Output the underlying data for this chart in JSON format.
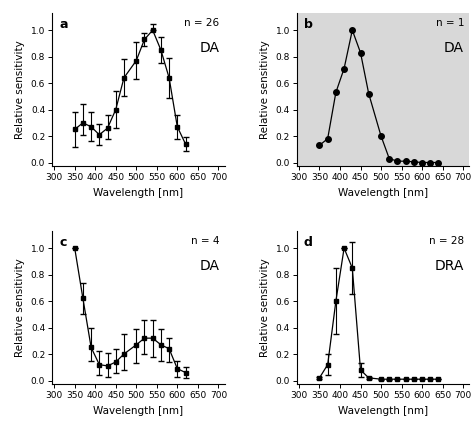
{
  "panel_a": {
    "label": "a",
    "n_label": "n = 26",
    "type_label": "DA",
    "x": [
      350,
      370,
      390,
      410,
      430,
      450,
      470,
      500,
      520,
      540,
      560,
      580,
      600,
      620
    ],
    "y": [
      0.25,
      0.3,
      0.27,
      0.21,
      0.26,
      0.4,
      0.64,
      0.77,
      0.93,
      1.0,
      0.85,
      0.64,
      0.27,
      0.14
    ],
    "yerr_lo": [
      0.13,
      0.09,
      0.11,
      0.08,
      0.08,
      0.14,
      0.14,
      0.14,
      0.05,
      0.0,
      0.1,
      0.15,
      0.09,
      0.05
    ],
    "yerr_hi": [
      0.13,
      0.14,
      0.11,
      0.08,
      0.1,
      0.14,
      0.14,
      0.14,
      0.05,
      0.05,
      0.1,
      0.15,
      0.09,
      0.05
    ],
    "has_errors": true,
    "marker": "s",
    "markersize": 3.5
  },
  "panel_b": {
    "label": "b",
    "n_label": "n = 1",
    "type_label": "DA",
    "x": [
      350,
      370,
      390,
      410,
      430,
      450,
      470,
      500,
      520,
      540,
      560,
      580,
      600,
      620,
      640
    ],
    "y": [
      0.13,
      0.18,
      0.53,
      0.71,
      1.0,
      0.83,
      0.52,
      0.2,
      0.03,
      0.01,
      0.01,
      0.005,
      0.0,
      0.0,
      0.0
    ],
    "yerr_lo": [],
    "yerr_hi": [],
    "has_errors": false,
    "marker": "o",
    "markersize": 4
  },
  "panel_c": {
    "label": "c",
    "n_label": "n = 4",
    "type_label": "DA",
    "x": [
      350,
      370,
      390,
      410,
      430,
      450,
      470,
      500,
      520,
      540,
      560,
      580,
      600,
      620
    ],
    "y": [
      1.0,
      0.62,
      0.25,
      0.12,
      0.11,
      0.14,
      0.2,
      0.27,
      0.32,
      0.32,
      0.27,
      0.24,
      0.09,
      0.06
    ],
    "yerr_lo": [
      0.0,
      0.12,
      0.1,
      0.08,
      0.08,
      0.08,
      0.12,
      0.14,
      0.12,
      0.14,
      0.12,
      0.1,
      0.06,
      0.04
    ],
    "yerr_hi": [
      0.0,
      0.12,
      0.15,
      0.1,
      0.1,
      0.1,
      0.15,
      0.12,
      0.14,
      0.14,
      0.12,
      0.08,
      0.06,
      0.04
    ],
    "has_errors": true,
    "marker": "s",
    "markersize": 3.5
  },
  "panel_d": {
    "label": "d",
    "n_label": "n = 28",
    "type_label": "DRA",
    "x": [
      350,
      370,
      390,
      410,
      430,
      450,
      470,
      500,
      520,
      540,
      560,
      580,
      600,
      620,
      640
    ],
    "y": [
      0.02,
      0.12,
      0.6,
      1.0,
      0.85,
      0.08,
      0.02,
      0.01,
      0.01,
      0.01,
      0.01,
      0.01,
      0.01,
      0.01,
      0.01
    ],
    "yerr_lo": [
      0.01,
      0.08,
      0.25,
      0.0,
      0.2,
      0.05,
      0.01,
      0.005,
      0.005,
      0.0,
      0.0,
      0.0,
      0.0,
      0.0,
      0.0
    ],
    "yerr_hi": [
      0.01,
      0.08,
      0.25,
      0.0,
      0.2,
      0.05,
      0.01,
      0.005,
      0.005,
      0.0,
      0.0,
      0.0,
      0.0,
      0.0,
      0.0
    ],
    "has_errors": true,
    "marker": "s",
    "markersize": 3.5
  },
  "xlim": [
    295,
    715
  ],
  "ylim": [
    -0.03,
    1.13
  ],
  "yticks": [
    0.0,
    0.2,
    0.4,
    0.6,
    0.8,
    1.0
  ],
  "xticks": [
    300,
    350,
    400,
    450,
    500,
    550,
    600,
    650,
    700
  ],
  "xticklabels": [
    "300",
    "350",
    "400",
    "450",
    "500",
    "550",
    "600",
    "650",
    "700"
  ],
  "xlabel": "Wavelength [nm]",
  "ylabel": "Relative sensitivity",
  "linewidth": 0.9,
  "color": "black",
  "capsize": 2,
  "elinewidth": 0.8,
  "label_fontsize": 7.5,
  "tick_fontsize": 6.5,
  "n_fontsize": 7.5,
  "type_fontsize": 10,
  "panel_letter_fontsize": 9,
  "panel_b_bg": "#d8d8d8"
}
